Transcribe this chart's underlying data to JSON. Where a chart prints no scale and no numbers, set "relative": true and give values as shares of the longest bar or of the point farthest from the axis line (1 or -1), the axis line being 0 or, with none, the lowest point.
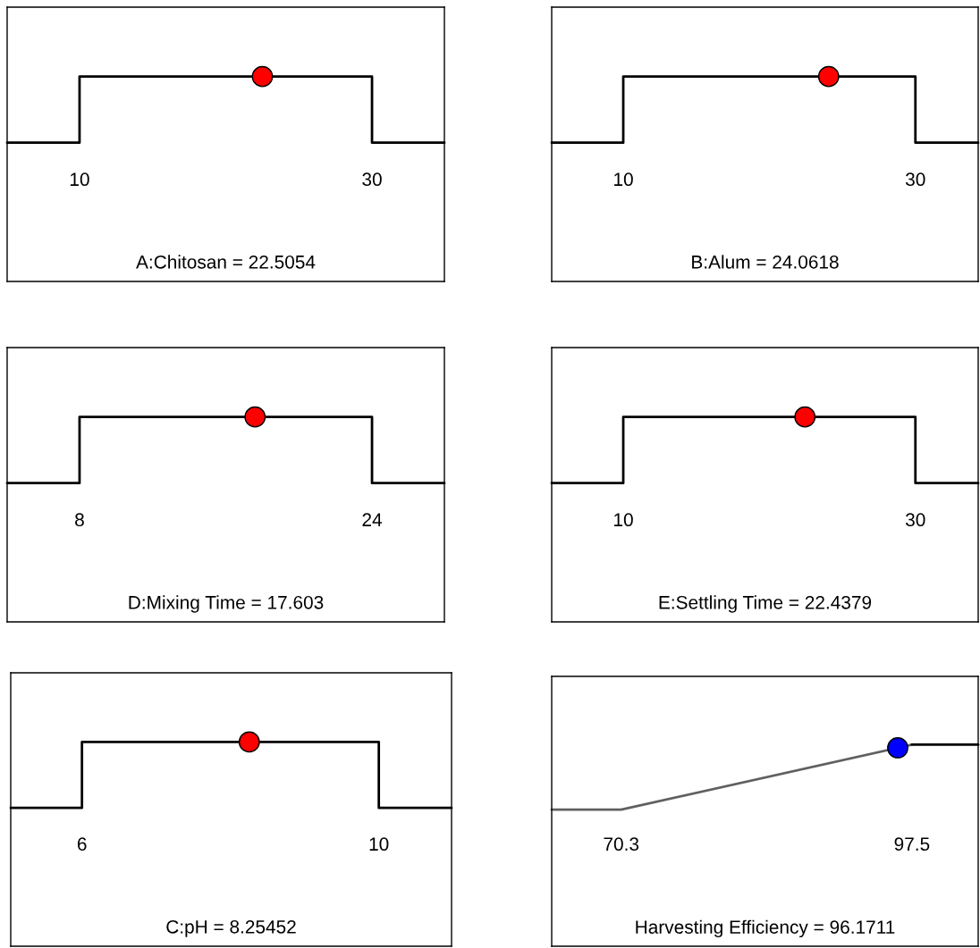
{
  "chart_data": [
    {
      "type": "line",
      "relative": true,
      "xlabel": "A:Chitosan = 22.5054",
      "xlim": [
        5.05,
        34.95
      ],
      "xticks": [
        10,
        30
      ],
      "tick_labels": "x",
      "series": [
        {
          "color": "#000000",
          "x": [
            5.05,
            10,
            10,
            30,
            30,
            34.95
          ],
          "values": [
            0,
            0,
            1,
            1,
            0,
            0
          ]
        },
        {
          "type": "scatter",
          "marker": "circle",
          "color": "#ff0000",
          "x": [
            22.5054
          ],
          "values": [
            1
          ]
        }
      ]
    },
    {
      "type": "line",
      "relative": true,
      "xlabel": "B:Alum = 24.0618",
      "xlim": [
        5.1,
        34.3
      ],
      "xticks": [
        10,
        30
      ],
      "tick_labels": "x",
      "series": [
        {
          "color": "#000000",
          "x": [
            5.1,
            10,
            10,
            30,
            30,
            34.3
          ],
          "values": [
            0,
            0,
            1,
            1,
            0,
            0
          ]
        },
        {
          "type": "scatter",
          "marker": "circle",
          "color": "#ff0000",
          "x": [
            24.0618
          ],
          "values": [
            1
          ]
        }
      ]
    },
    {
      "type": "line",
      "relative": true,
      "xlabel": "D:Mixing Time = 17.603",
      "xlim": [
        4.04,
        27.96
      ],
      "xticks": [
        8,
        24
      ],
      "tick_labels": "x",
      "series": [
        {
          "color": "#000000",
          "x": [
            4.04,
            8,
            8,
            24,
            24,
            27.96
          ],
          "values": [
            0,
            0,
            1,
            1,
            0,
            0
          ]
        },
        {
          "type": "scatter",
          "marker": "circle",
          "color": "#ff0000",
          "x": [
            17.603
          ],
          "values": [
            1
          ]
        }
      ]
    },
    {
      "type": "line",
      "relative": true,
      "xlabel": "E:Settling Time = 22.4379",
      "xlim": [
        5.1,
        34.3
      ],
      "xticks": [
        10,
        30
      ],
      "tick_labels": "x",
      "series": [
        {
          "color": "#000000",
          "x": [
            5.1,
            10,
            10,
            30,
            30,
            34.3
          ],
          "values": [
            0,
            0,
            1,
            1,
            0,
            0
          ]
        },
        {
          "type": "scatter",
          "marker": "circle",
          "color": "#ff0000",
          "x": [
            22.4379
          ],
          "values": [
            1
          ]
        }
      ]
    },
    {
      "type": "line",
      "relative": true,
      "xlabel": "C:pH = 8.25452",
      "xlim": [
        5.04,
        10.98
      ],
      "xticks": [
        6,
        10
      ],
      "tick_labels": "x",
      "series": [
        {
          "color": "#000000",
          "x": [
            5.04,
            6,
            6,
            10,
            10,
            10.98
          ],
          "values": [
            0,
            0,
            1,
            1,
            0,
            0
          ]
        },
        {
          "type": "scatter",
          "marker": "circle",
          "color": "#ff0000",
          "x": [
            8.25452
          ],
          "values": [
            1
          ]
        }
      ]
    },
    {
      "type": "line",
      "relative": true,
      "xlabel": "Harvesting Efficiency = 96.1711",
      "xlim": [
        63.8,
        103.7
      ],
      "xticks": [
        70.3,
        97.5
      ],
      "tick_labels": "x",
      "series": [
        {
          "color": "#606060",
          "x": [
            63.8,
            70.3,
            97.5
          ],
          "values": [
            0,
            0,
            1
          ]
        },
        {
          "color": "#000000",
          "x": [
            97.5,
            103.7
          ],
          "values": [
            1,
            1
          ]
        },
        {
          "type": "scatter",
          "marker": "circle",
          "color": "#0000ff",
          "x": [
            96.1711
          ],
          "values": [
            0.951
          ]
        }
      ]
    }
  ]
}
